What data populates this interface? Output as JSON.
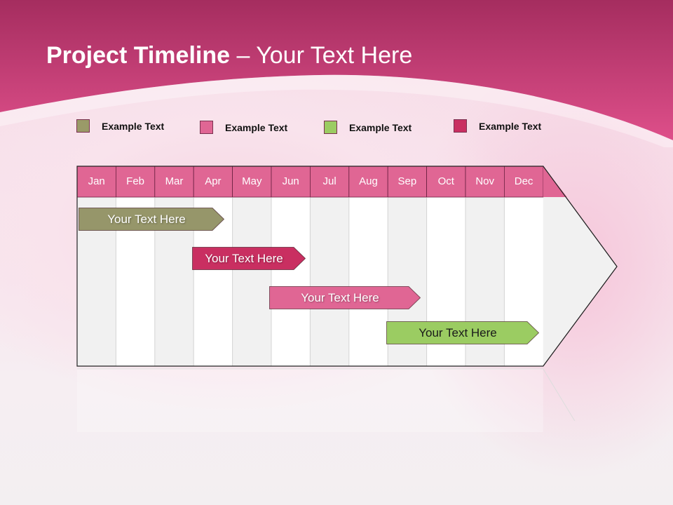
{
  "title": {
    "bold": "Project Timeline",
    "rest": " – Your Text Here"
  },
  "legend": [
    {
      "label": "Example Text",
      "color": "#9a9a68"
    },
    {
      "label": "Example Text",
      "color": "#e06694"
    },
    {
      "label": "Example Text",
      "color": "#9bcc62"
    },
    {
      "label": "Example Text",
      "color": "#c92f61"
    }
  ],
  "months": [
    "Jan",
    "Feb",
    "Mar",
    "Apr",
    "May",
    "Jun",
    "Jul",
    "Aug",
    "Sep",
    "Oct",
    "Nov",
    "Dec"
  ],
  "tasks": [
    {
      "label": "Your  Text Here",
      "start_month": "Jan",
      "end_month": "Apr",
      "color": "#96966a"
    },
    {
      "label": "Your  Text Here",
      "start_month": "Apr",
      "end_month": "Jun",
      "color": "#c92f61"
    },
    {
      "label": "Your  Text Here",
      "start_month": "Jun",
      "end_month": "Sep",
      "color": "#e06694"
    },
    {
      "label": "Your  Text Here",
      "start_month": "Sep",
      "end_month": "Dec",
      "color": "#9bcc62"
    }
  ],
  "colors": {
    "header": "#e06694",
    "banner": "#c83a72"
  }
}
